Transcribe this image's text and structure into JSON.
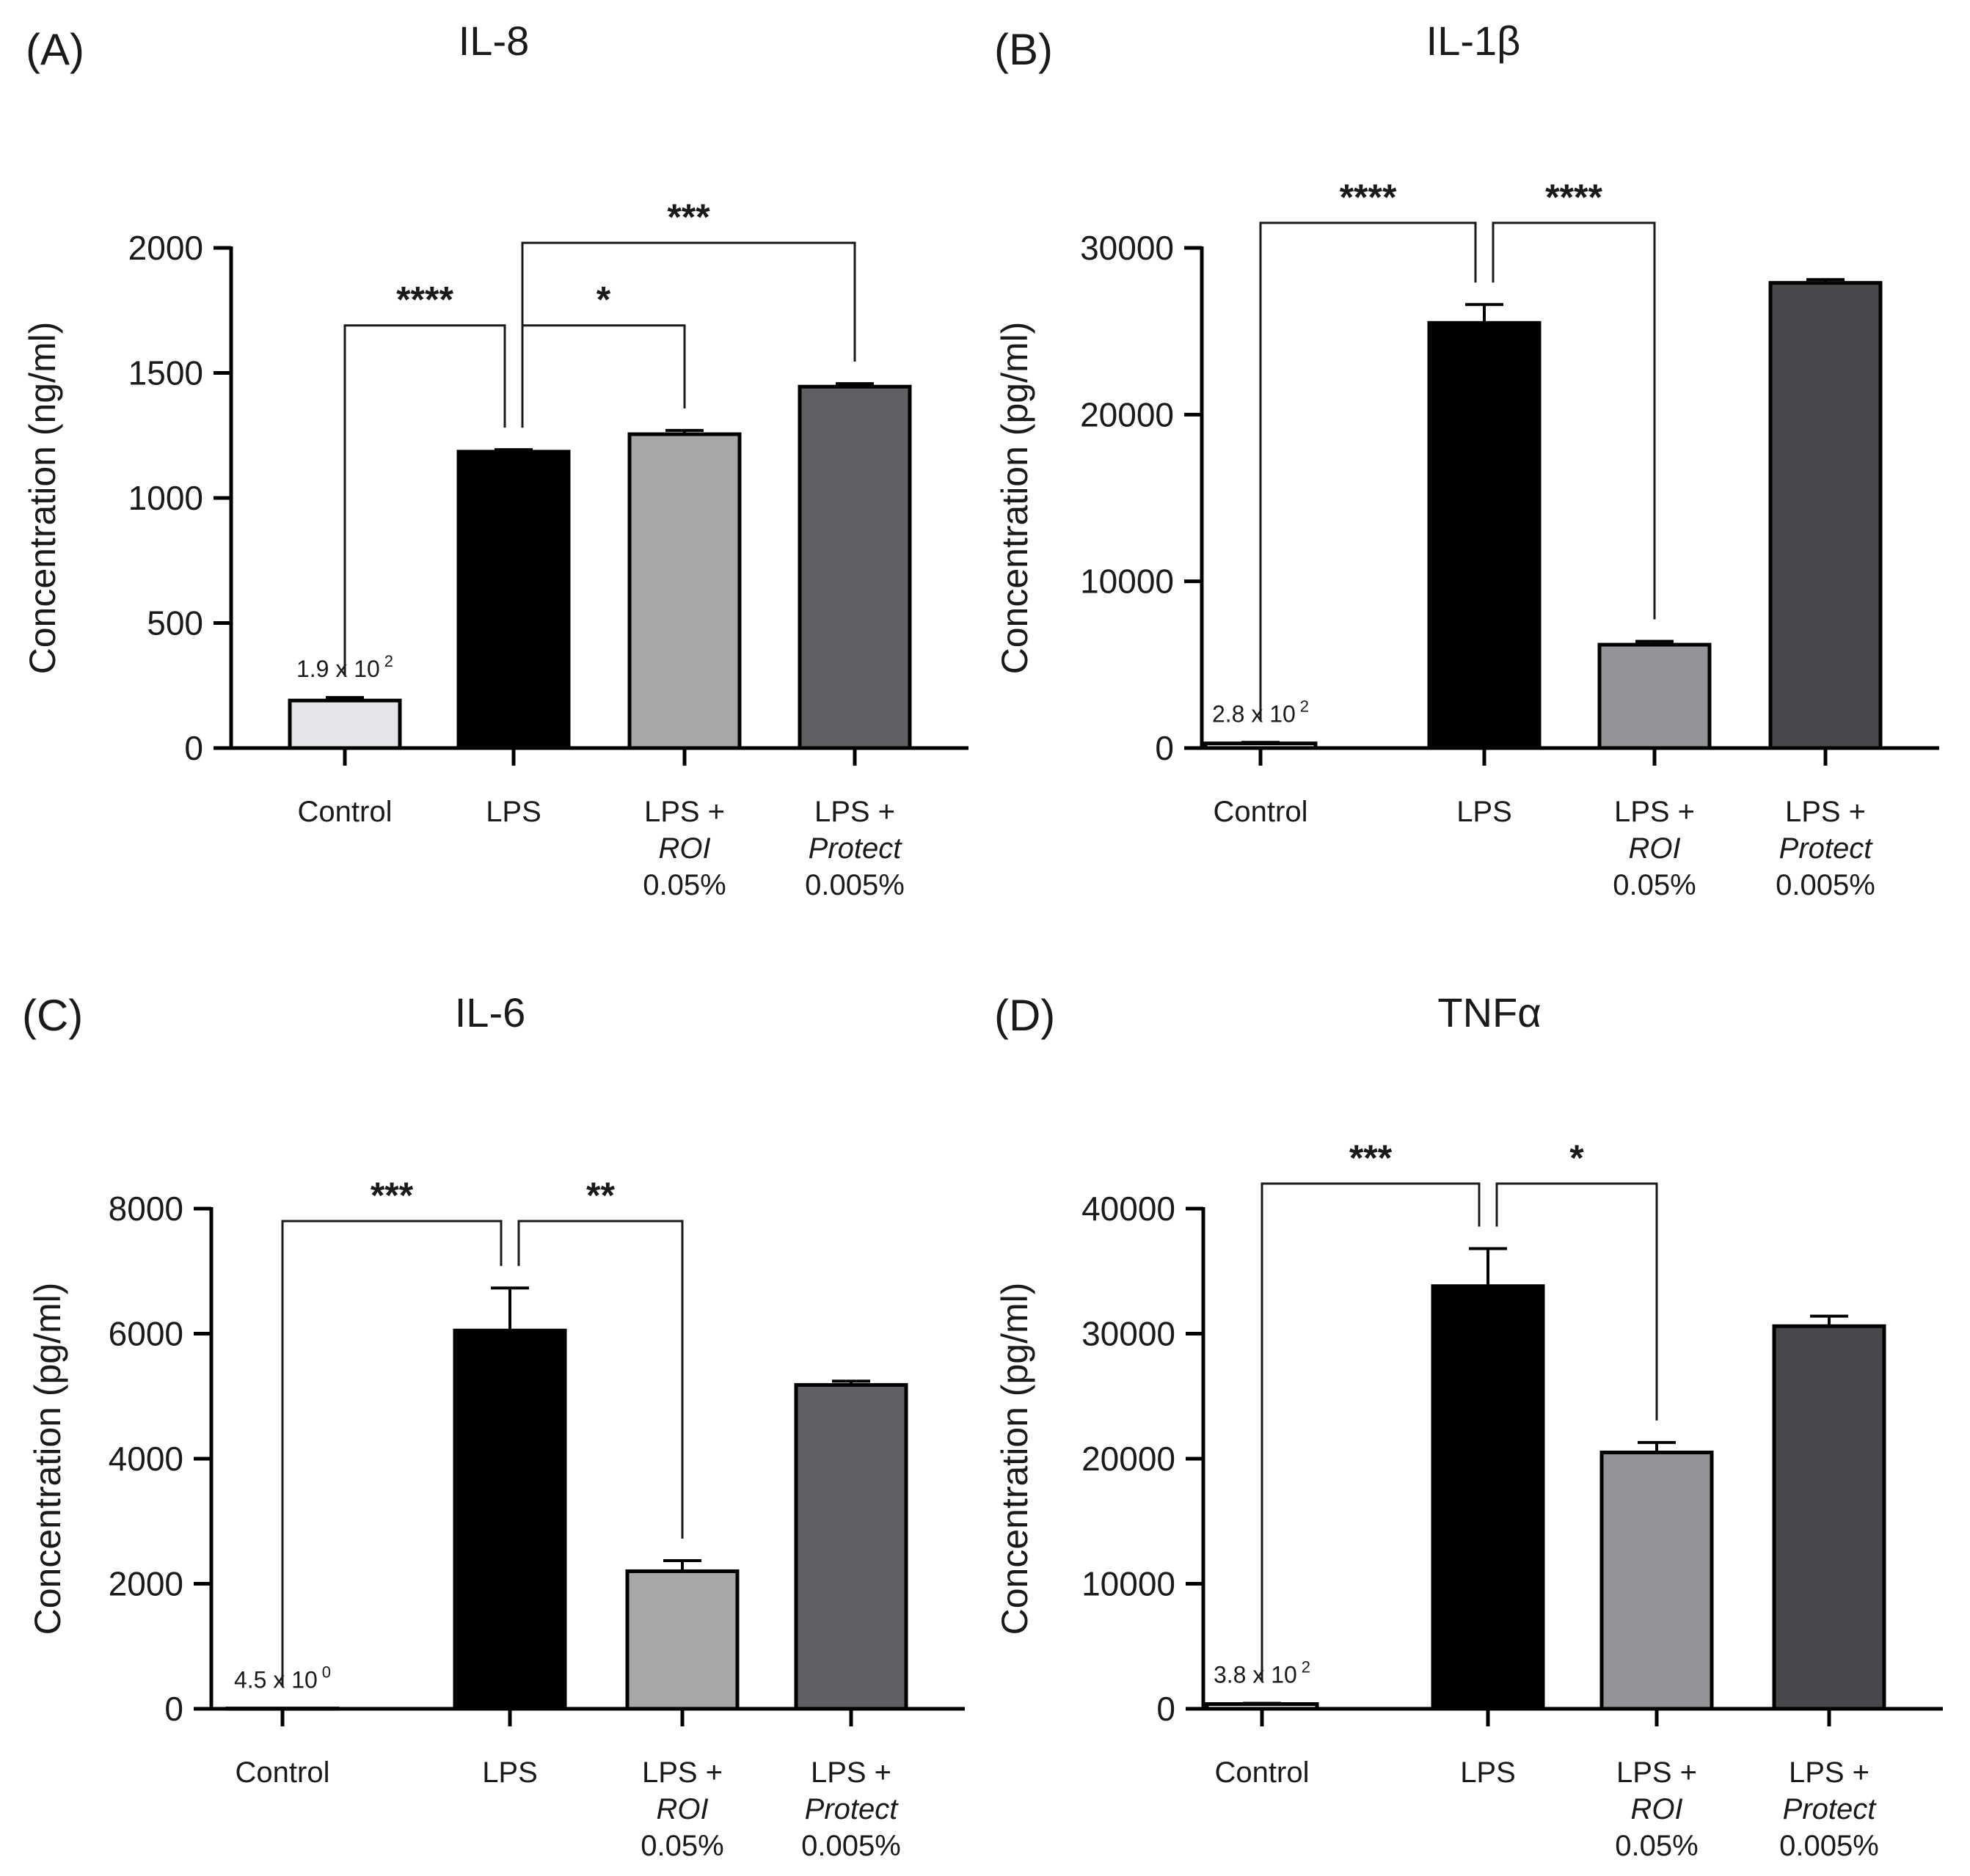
{
  "chart_data": [
    {
      "type": "bar",
      "panel": "(A)",
      "title": "IL-8",
      "xlabel": "",
      "ylabel": "Concentration (ng/ml)",
      "ylim": [
        0,
        2000
      ],
      "yticks": [
        0,
        500,
        1000,
        1500,
        2000
      ],
      "yticklabels": [
        "0",
        "500",
        "1000",
        "1500",
        "2000"
      ],
      "categories": [
        {
          "lines": [
            "Control"
          ]
        },
        {
          "lines": [
            "LPS"
          ]
        },
        {
          "lines": [
            "LPS +",
            "ROI",
            "0.05%"
          ]
        },
        {
          "lines": [
            "LPS +",
            "Protect",
            "0.005%"
          ]
        }
      ],
      "values": [
        190,
        1185,
        1255,
        1445
      ],
      "errors": [
        12,
        8,
        15,
        12
      ],
      "colors": [
        "#e4e5e8",
        "#000000",
        "#a6a7a9",
        "#5f6063"
      ],
      "value_annotation": {
        "base": "1.9 x 10",
        "exp": "2"
      },
      "significance": [
        {
          "from": 0,
          "to": 1,
          "label": "****",
          "y": 1690
        },
        {
          "from": 1,
          "to": 2,
          "label": "*",
          "y": 1690
        },
        {
          "from": 1,
          "to": 3,
          "label": "***",
          "y": 2020
        }
      ]
    },
    {
      "type": "bar",
      "panel": "(B)",
      "title": "IL-1β",
      "xlabel": "",
      "ylabel": "Concentration (pg/ml)",
      "ylim": [
        0,
        30000
      ],
      "yticks": [
        0,
        10000,
        20000,
        30000
      ],
      "yticklabels": [
        "0",
        "10000",
        "20000",
        "30000"
      ],
      "categories": [
        {
          "lines": [
            "Control"
          ]
        },
        {
          "lines": [
            "LPS"
          ]
        },
        {
          "lines": [
            "LPS +",
            "ROI",
            "0.05%"
          ]
        },
        {
          "lines": [
            "LPS +",
            "Protect",
            "0.005%"
          ]
        }
      ],
      "values": [
        280,
        25500,
        6200,
        27900
      ],
      "errors": [
        60,
        1100,
        200,
        200
      ],
      "colors": [
        "#e4e5e8",
        "#000000",
        "#939497",
        "#48494c"
      ],
      "value_annotation": {
        "base": "2.8 x 10",
        "exp": "2"
      },
      "significance": [
        {
          "from": 0,
          "to": 1,
          "label": "****",
          "y": 31500
        },
        {
          "from": 1,
          "to": 2,
          "label": "****",
          "y": 31500
        }
      ]
    },
    {
      "type": "bar",
      "panel": "(C)",
      "title": "IL-6",
      "xlabel": "",
      "ylabel": "Concentration (pg/ml)",
      "ylim": [
        0,
        8000
      ],
      "yticks": [
        0,
        2000,
        4000,
        6000,
        8000
      ],
      "yticklabels": [
        "0",
        "2000",
        "4000",
        "6000",
        "8000"
      ],
      "categories": [
        {
          "lines": [
            "Control"
          ]
        },
        {
          "lines": [
            "LPS"
          ]
        },
        {
          "lines": [
            "LPS +",
            "ROI",
            "0.05%"
          ]
        },
        {
          "lines": [
            "LPS +",
            "Protect",
            "0.005%"
          ]
        }
      ],
      "values": [
        4.5,
        6050,
        2200,
        5180
      ],
      "errors": [
        0,
        680,
        170,
        60
      ],
      "colors": [
        "#e4e5e8",
        "#000000",
        "#a6a7a9",
        "#5f6063"
      ],
      "value_annotation": {
        "base": "4.5 x 10",
        "exp": "0"
      },
      "significance": [
        {
          "from": 0,
          "to": 1,
          "label": "***",
          "y": 7800
        },
        {
          "from": 1,
          "to": 2,
          "label": "**",
          "y": 7800
        }
      ]
    },
    {
      "type": "bar",
      "panel": "(D)",
      "title": "TNFα",
      "xlabel": "",
      "ylabel": "Concentration (pg/ml)",
      "ylim": [
        0,
        40000
      ],
      "yticks": [
        0,
        10000,
        20000,
        30000,
        40000
      ],
      "yticklabels": [
        "0",
        "10000",
        "20000",
        "30000",
        "40000"
      ],
      "categories": [
        {
          "lines": [
            "Control"
          ]
        },
        {
          "lines": [
            "LPS"
          ]
        },
        {
          "lines": [
            "LPS +",
            "ROI",
            "0.05%"
          ]
        },
        {
          "lines": [
            "LPS +",
            "Protect",
            "0.005%"
          ]
        }
      ],
      "values": [
        380,
        33800,
        20500,
        30600
      ],
      "errors": [
        60,
        3000,
        800,
        800
      ],
      "colors": [
        "#e4e5e8",
        "#000000",
        "#939497",
        "#48494c"
      ],
      "value_annotation": {
        "base": "3.8 x 10",
        "exp": "2"
      },
      "significance": [
        {
          "from": 0,
          "to": 1,
          "label": "***",
          "y": 42000
        },
        {
          "from": 1,
          "to": 2,
          "label": "*",
          "y": 42000
        }
      ]
    }
  ]
}
